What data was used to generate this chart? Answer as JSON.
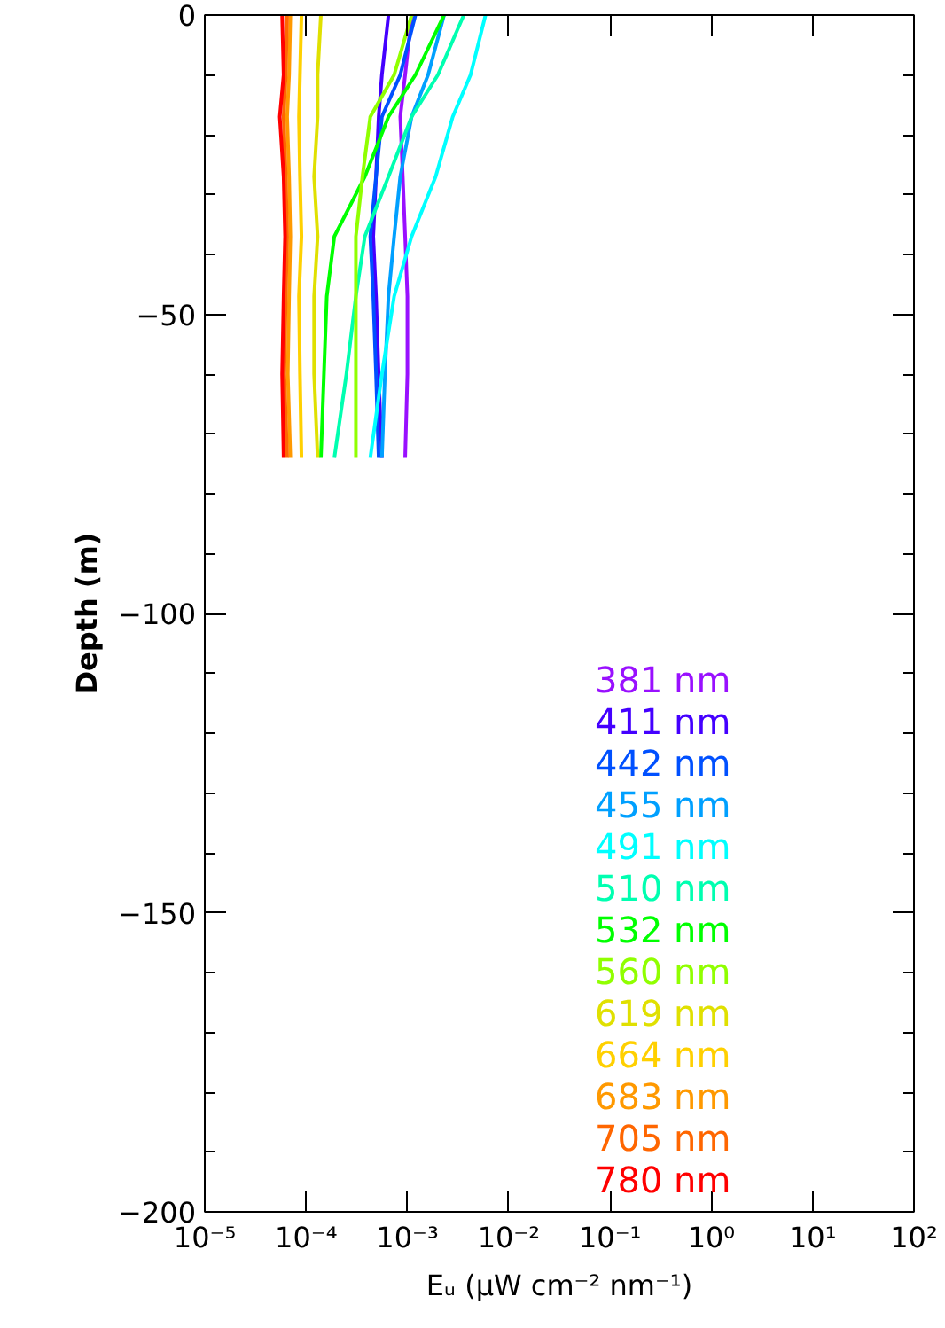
{
  "chart_data": {
    "type": "line",
    "xlabel": "Eᵤ (μW cm⁻² nm⁻¹)",
    "ylabel": "Depth (m)",
    "log": "x",
    "grid": false,
    "legend": "bottom right",
    "xlim": [
      1e-05,
      100
    ],
    "ylim": [
      -200,
      0
    ],
    "xticks": [
      {
        "value": 1e-05,
        "label": "10⁻⁵"
      },
      {
        "value": 0.0001,
        "label": "10⁻⁴"
      },
      {
        "value": 0.001,
        "label": "10⁻³"
      },
      {
        "value": 0.01,
        "label": "10⁻²"
      },
      {
        "value": 0.1,
        "label": "10⁻¹"
      },
      {
        "value": 1,
        "label": "10⁰"
      },
      {
        "value": 10,
        "label": "10¹"
      },
      {
        "value": 100,
        "label": "10²"
      }
    ],
    "yticks": [
      0,
      -50,
      -100,
      -150,
      -200
    ],
    "series": [
      {
        "name": "381 nm",
        "color": "#9910ff",
        "x": [
          0.0011,
          0.00095,
          0.00085,
          0.0009,
          0.00095,
          0.001,
          0.001,
          0.00095
        ],
        "values": [
          0,
          -10,
          -17,
          -27,
          -37,
          -47,
          -60,
          -74
        ]
      },
      {
        "name": "411 nm",
        "color": "#4400ff",
        "x": [
          0.00065,
          0.00056,
          0.00052,
          0.00049,
          0.00046,
          0.00049,
          0.00052,
          0.00056
        ],
        "values": [
          0,
          -10,
          -17,
          -27,
          -37,
          -47,
          -60,
          -74
        ]
      },
      {
        "name": "442 nm",
        "color": "#0050ff",
        "x": [
          0.0012,
          0.00085,
          0.00056,
          0.00049,
          0.00043,
          0.00046,
          0.00049,
          0.00052
        ],
        "values": [
          0,
          -10,
          -17,
          -27,
          -37,
          -47,
          -60,
          -74
        ]
      },
      {
        "name": "455 nm",
        "color": "#00a0ff",
        "x": [
          0.0023,
          0.0016,
          0.0011,
          0.00085,
          0.00074,
          0.00065,
          0.0006,
          0.00056
        ],
        "values": [
          0,
          -10,
          -17,
          -27,
          -37,
          -47,
          -60,
          -74
        ]
      },
      {
        "name": "491 nm",
        "color": "#00ffff",
        "x": [
          0.0059,
          0.0042,
          0.0028,
          0.0019,
          0.0011,
          0.00074,
          0.00056,
          0.00043
        ],
        "values": [
          0,
          -10,
          -17,
          -27,
          -37,
          -47,
          -60,
          -74
        ]
      },
      {
        "name": "510 nm",
        "color": "#00ffb0",
        "x": [
          0.0036,
          0.002,
          0.0011,
          0.00065,
          0.00038,
          0.00031,
          0.00025,
          0.00019
        ],
        "values": [
          0,
          -10,
          -17,
          -27,
          -37,
          -47,
          -60,
          -74
        ]
      },
      {
        "name": "532 nm",
        "color": "#00ff00",
        "x": [
          0.0023,
          0.0012,
          0.00065,
          0.00038,
          0.00019,
          0.00016,
          0.00015,
          0.00014
        ],
        "values": [
          0,
          -10,
          -17,
          -27,
          -37,
          -47,
          -60,
          -74
        ]
      },
      {
        "name": "560 nm",
        "color": "#90ff00",
        "x": [
          0.0011,
          0.00074,
          0.00043,
          0.00036,
          0.00031,
          0.00031,
          0.00031,
          0.00031
        ],
        "values": [
          0,
          -10,
          -17,
          -27,
          -37,
          -47,
          -60,
          -74
        ]
      },
      {
        "name": "619 nm",
        "color": "#e0e000",
        "x": [
          0.00014,
          0.00013,
          0.00013,
          0.00012,
          0.00013,
          0.00012,
          0.00012,
          0.00013
        ],
        "values": [
          0,
          -10,
          -17,
          -27,
          -37,
          -47,
          -60,
          -74
        ]
      },
      {
        "name": "664 nm",
        "color": "#ffd000",
        "x": [
          9e-05,
          8.7e-05,
          8.5e-05,
          8.7e-05,
          9e-05,
          8.5e-05,
          8.7e-05,
          9e-05
        ],
        "values": [
          0,
          -10,
          -17,
          -27,
          -37,
          -47,
          -60,
          -74
        ]
      },
      {
        "name": "683 nm",
        "color": "#ff9900",
        "x": [
          7e-05,
          6.8e-05,
          6.5e-05,
          6.8e-05,
          7e-05,
          6.8e-05,
          6.6e-05,
          7e-05
        ],
        "values": [
          0,
          -10,
          -17,
          -27,
          -37,
          -47,
          -60,
          -74
        ]
      },
      {
        "name": "705 nm",
        "color": "#ff6600",
        "x": [
          6.5e-05,
          6.3e-05,
          6e-05,
          6.3e-05,
          6.5e-05,
          6.3e-05,
          6.1e-05,
          6.5e-05
        ],
        "values": [
          0,
          -10,
          -17,
          -27,
          -37,
          -47,
          -60,
          -74
        ]
      },
      {
        "name": "780 nm",
        "color": "#ff0000",
        "x": [
          5.8e-05,
          6e-05,
          5.5e-05,
          6e-05,
          6.2e-05,
          6e-05,
          5.8e-05,
          6e-05
        ],
        "values": [
          0,
          -10,
          -17,
          -27,
          -37,
          -47,
          -60,
          -74
        ]
      }
    ]
  }
}
